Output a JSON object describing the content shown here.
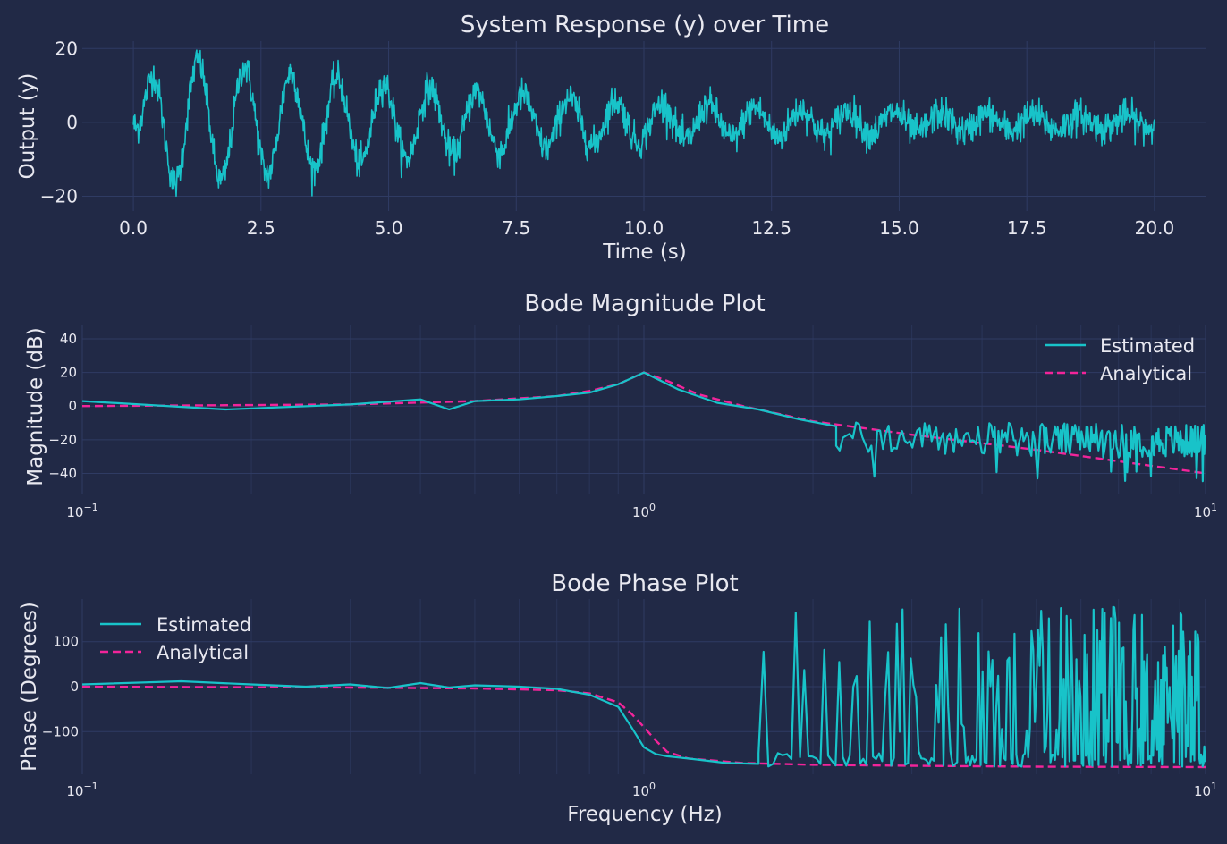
{
  "colors": {
    "background": "#212946",
    "estimated": "#18c3c9",
    "analytical": "#f2249a",
    "text": "#e8e8f0"
  },
  "chart_data": [
    {
      "type": "line",
      "title": "System Response (y) over Time",
      "xlabel": "Time (s)",
      "ylabel": "Output (y)",
      "xlim": [
        -1,
        21
      ],
      "ylim": [
        -24,
        22
      ],
      "xticks": [
        0.0,
        2.5,
        5.0,
        7.5,
        10.0,
        12.5,
        15.0,
        17.5,
        20.0
      ],
      "xtick_labels": [
        "0.0",
        "2.5",
        "5.0",
        "7.5",
        "10.0",
        "12.5",
        "15.0",
        "17.5",
        "20.0"
      ],
      "yticks": [
        -20,
        0,
        20
      ],
      "ytick_labels": [
        "−20",
        "0",
        "20"
      ],
      "grid": true,
      "series": [
        {
          "color": "#18c3c9",
          "description": "damped oscillation, amplitude about 20 decaying, frequency about 1.1 Hz, with noise of about 2",
          "x_range": [
            0,
            20
          ],
          "sample_rate_hz": 100
        }
      ]
    },
    {
      "type": "line",
      "title": "Bode Magnitude Plot",
      "xlabel": "",
      "ylabel": "Magnitude (dB)",
      "xscale": "log",
      "xlim": [
        0.1,
        10
      ],
      "ylim": [
        -52,
        48
      ],
      "xtick_labels": [
        "10",
        "10",
        "10"
      ],
      "xtick_exponents": [
        "−1",
        "0",
        "1"
      ],
      "yticks": [
        -40,
        -20,
        0,
        20,
        40
      ],
      "ytick_labels": [
        "−40",
        "−20",
        "0",
        "20",
        "40"
      ],
      "grid": true,
      "legend": "top-right",
      "series": [
        {
          "name": "Estimated",
          "color": "#18c3c9",
          "style": "solid",
          "x": [
            0.1,
            0.18,
            0.3,
            0.4,
            0.45,
            0.5,
            0.6,
            0.7,
            0.8,
            0.9,
            1.0,
            1.15,
            1.35,
            1.6,
            1.9,
            2.2
          ],
          "y": [
            3,
            -2,
            1,
            4,
            -2,
            3,
            4,
            6,
            8,
            13,
            20,
            10,
            2,
            -2,
            -8,
            -12
          ],
          "noise_region": {
            "x_range": [
              2.2,
              10
            ],
            "y_mean": -18,
            "y_spread": 10,
            "min": -45
          }
        },
        {
          "name": "Analytical",
          "color": "#f2249a",
          "style": "dashed",
          "x": [
            0.1,
            0.3,
            0.5,
            0.7,
            0.8,
            0.9,
            1.0,
            1.1,
            1.25,
            1.5,
            2.0,
            3.0,
            5.0,
            10.0
          ],
          "y": [
            0,
            1,
            3,
            6,
            9,
            13,
            20,
            15,
            7,
            0,
            -9,
            -17,
            -26,
            -40
          ]
        }
      ]
    },
    {
      "type": "line",
      "title": "Bode Phase Plot",
      "xlabel": "Frequency (Hz)",
      "ylabel": "Phase (Degrees)",
      "xscale": "log",
      "xlim": [
        0.1,
        10
      ],
      "ylim": [
        -195,
        195
      ],
      "xtick_labels": [
        "10",
        "10",
        "10"
      ],
      "xtick_exponents": [
        "−1",
        "0",
        "1"
      ],
      "yticks": [
        -100,
        0,
        100
      ],
      "ytick_labels": [
        "−100",
        "0",
        "100"
      ],
      "grid": true,
      "legend": "top-left",
      "series": [
        {
          "name": "Estimated",
          "color": "#18c3c9",
          "style": "solid",
          "x": [
            0.1,
            0.15,
            0.2,
            0.25,
            0.3,
            0.35,
            0.4,
            0.45,
            0.5,
            0.6,
            0.7,
            0.8,
            0.9,
            0.95,
            1.0,
            1.05,
            1.1,
            1.2,
            1.4,
            1.6
          ],
          "y": [
            5,
            12,
            5,
            0,
            5,
            -3,
            8,
            -2,
            3,
            0,
            -5,
            -18,
            -45,
            -90,
            -135,
            -150,
            -155,
            -160,
            -170,
            -172
          ],
          "noise_region": {
            "x_range": [
              1.6,
              10
            ],
            "low": -178,
            "high": 178
          }
        },
        {
          "name": "Analytical",
          "color": "#f2249a",
          "style": "dashed",
          "x": [
            0.1,
            0.3,
            0.5,
            0.7,
            0.8,
            0.9,
            0.95,
            1.0,
            1.05,
            1.1,
            1.2,
            1.5,
            2.0,
            3.0,
            5.0,
            10.0
          ],
          "y": [
            0,
            -2,
            -4,
            -8,
            -15,
            -35,
            -60,
            -90,
            -120,
            -145,
            -160,
            -170,
            -174,
            -176,
            -178,
            -179
          ]
        }
      ]
    }
  ]
}
